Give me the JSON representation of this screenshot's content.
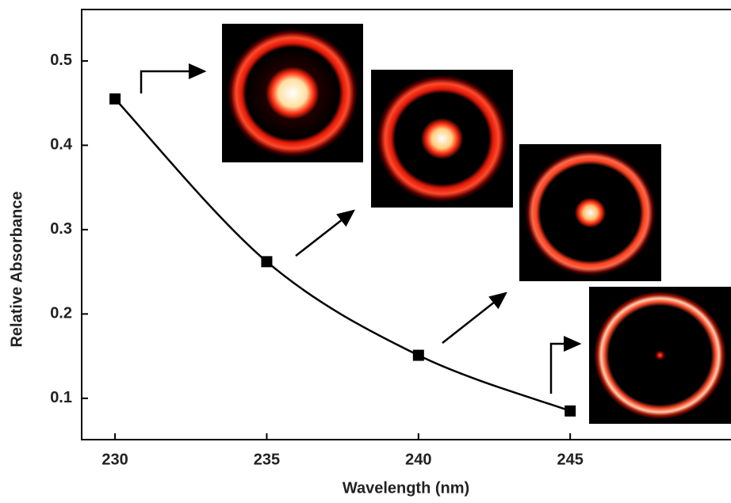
{
  "chart_data": {
    "type": "line",
    "x_label": "Wavelength (nm)",
    "y_label": "Relative Absorbance",
    "x": [
      230,
      235,
      240,
      245
    ],
    "values": [
      0.455,
      0.262,
      0.151,
      0.085
    ],
    "color": "#000000",
    "xlim": [
      228.9,
      250.3
    ],
    "xticks": [
      230,
      235,
      240,
      245
    ],
    "ylim": [
      0.051,
      0.561
    ],
    "yticks": [
      0.1,
      0.2,
      0.3,
      0.4,
      0.5
    ]
  }
}
